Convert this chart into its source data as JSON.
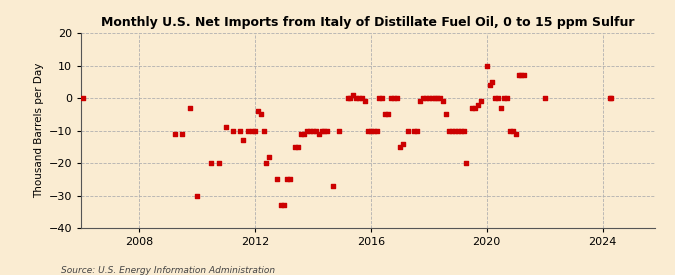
{
  "title": "Monthly U.S. Net Imports from Italy of Distillate Fuel Oil, 0 to 15 ppm Sulfur",
  "ylabel": "Thousand Barrels per Day",
  "source": "Source: U.S. Energy Information Administration",
  "background_color": "#faecd2",
  "point_color": "#cc0000",
  "ylim": [
    -40,
    20
  ],
  "yticks": [
    -40,
    -30,
    -20,
    -10,
    0,
    10,
    20
  ],
  "xlim": [
    2006.0,
    2025.8
  ],
  "xticks_years": [
    2008,
    2012,
    2016,
    2020,
    2024
  ],
  "data_points": [
    [
      2006.08,
      0
    ],
    [
      2009.25,
      -11
    ],
    [
      2009.5,
      -11
    ],
    [
      2009.75,
      -3
    ],
    [
      2010.0,
      -30
    ],
    [
      2010.5,
      -20
    ],
    [
      2010.75,
      -20
    ],
    [
      2011.0,
      -9
    ],
    [
      2011.25,
      -10
    ],
    [
      2011.5,
      -10
    ],
    [
      2011.6,
      -13
    ],
    [
      2011.75,
      -10
    ],
    [
      2011.9,
      -10
    ],
    [
      2012.0,
      -10
    ],
    [
      2012.1,
      -4
    ],
    [
      2012.2,
      -5
    ],
    [
      2012.3,
      -10
    ],
    [
      2012.4,
      -20
    ],
    [
      2012.5,
      -18
    ],
    [
      2012.75,
      -25
    ],
    [
      2012.9,
      -33
    ],
    [
      2013.0,
      -33
    ],
    [
      2013.1,
      -25
    ],
    [
      2013.2,
      -25
    ],
    [
      2013.4,
      -15
    ],
    [
      2013.5,
      -15
    ],
    [
      2013.6,
      -11
    ],
    [
      2013.7,
      -11
    ],
    [
      2013.8,
      -10
    ],
    [
      2013.9,
      -10
    ],
    [
      2014.0,
      -10
    ],
    [
      2014.1,
      -10
    ],
    [
      2014.2,
      -11
    ],
    [
      2014.3,
      -10
    ],
    [
      2014.4,
      -10
    ],
    [
      2014.5,
      -10
    ],
    [
      2014.7,
      -27
    ],
    [
      2014.9,
      -10
    ],
    [
      2015.2,
      0
    ],
    [
      2015.3,
      0
    ],
    [
      2015.4,
      1
    ],
    [
      2015.5,
      0
    ],
    [
      2015.6,
      0
    ],
    [
      2015.7,
      0
    ],
    [
      2015.8,
      -1
    ],
    [
      2015.9,
      -10
    ],
    [
      2016.0,
      -10
    ],
    [
      2016.1,
      -10
    ],
    [
      2016.2,
      -10
    ],
    [
      2016.3,
      0
    ],
    [
      2016.4,
      0
    ],
    [
      2016.5,
      -5
    ],
    [
      2016.6,
      -5
    ],
    [
      2016.7,
      0
    ],
    [
      2016.8,
      0
    ],
    [
      2016.9,
      0
    ],
    [
      2017.0,
      -15
    ],
    [
      2017.1,
      -14
    ],
    [
      2017.3,
      -10
    ],
    [
      2017.5,
      -10
    ],
    [
      2017.6,
      -10
    ],
    [
      2017.7,
      -1
    ],
    [
      2017.8,
      0
    ],
    [
      2017.9,
      0
    ],
    [
      2018.0,
      0
    ],
    [
      2018.1,
      0
    ],
    [
      2018.2,
      0
    ],
    [
      2018.3,
      0
    ],
    [
      2018.4,
      0
    ],
    [
      2018.5,
      -1
    ],
    [
      2018.6,
      -5
    ],
    [
      2018.7,
      -10
    ],
    [
      2018.8,
      -10
    ],
    [
      2018.9,
      -10
    ],
    [
      2019.0,
      -10
    ],
    [
      2019.1,
      -10
    ],
    [
      2019.2,
      -10
    ],
    [
      2019.3,
      -20
    ],
    [
      2019.5,
      -3
    ],
    [
      2019.6,
      -3
    ],
    [
      2019.7,
      -2
    ],
    [
      2019.8,
      -1
    ],
    [
      2020.0,
      10
    ],
    [
      2020.1,
      4
    ],
    [
      2020.2,
      5
    ],
    [
      2020.3,
      0
    ],
    [
      2020.4,
      0
    ],
    [
      2020.5,
      -3
    ],
    [
      2020.6,
      0
    ],
    [
      2020.7,
      0
    ],
    [
      2020.8,
      -10
    ],
    [
      2020.9,
      -10
    ],
    [
      2021.0,
      -11
    ],
    [
      2021.1,
      7
    ],
    [
      2021.2,
      7
    ],
    [
      2021.3,
      7
    ],
    [
      2022.0,
      0
    ],
    [
      2024.25,
      0
    ],
    [
      2024.3,
      0
    ]
  ]
}
